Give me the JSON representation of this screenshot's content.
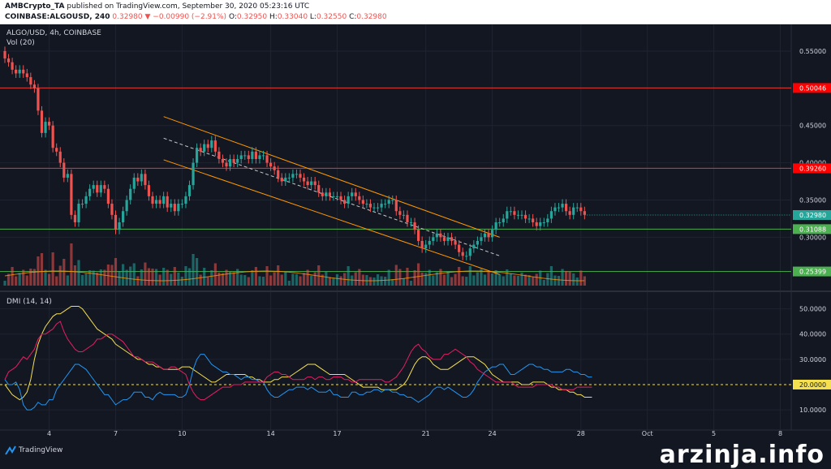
{
  "header": {
    "line1_author": "AMBCrypto_TA",
    "line1_rest": " published on TradingView.com, September 30, 2020 05:23:16 UTC",
    "symbol": "COINBASE:ALGOUSD, 240",
    "last": "0.32980",
    "change": "−0.00990 (−2.91%)",
    "o_lbl": "O:",
    "o": "0.32950",
    "h_lbl": "H:",
    "h": "0.33040",
    "l_lbl": "L:",
    "l": "0.32550",
    "c_lbl": "C:",
    "c": "0.32980"
  },
  "pane": {
    "title": "ALGO/USD, 4h, COINBASE",
    "vol": "Vol (20)",
    "dmi": "DMI (14, 14)"
  },
  "footer": {
    "brand": "TradingView",
    "watermark": "arzinja.info"
  },
  "colors": {
    "up": "#26a69a",
    "down": "#ef5350",
    "bg": "#131722",
    "grid": "#1f2330",
    "axis": "#d1d4dc",
    "channel": "#ff9800",
    "red_line": "#e53935",
    "green_line": "#4caf50",
    "adx": "#f5e050",
    "diplus": "#2196f3",
    "diminus": "#e91e63"
  },
  "chart_data": {
    "type": "candlestick",
    "price_ticks": [
      "0.55000",
      "0.45000",
      "0.40000",
      "0.35000",
      "0.30000"
    ],
    "price_tick_values": [
      0.55,
      0.45,
      0.4,
      0.35,
      0.3
    ],
    "ylim": [
      0.235,
      0.575
    ],
    "x_ticks": [
      "4",
      "7",
      "10",
      "14",
      "17",
      "21",
      "24",
      "28",
      "Oct",
      "5",
      "8"
    ],
    "x_tick_bars": [
      12,
      30,
      48,
      72,
      90,
      114,
      132,
      156,
      174,
      192,
      210
    ],
    "levels": [
      {
        "value": 0.50046,
        "label": "0.50046",
        "color": "#e53935",
        "label_bg": "#ff0000"
      },
      {
        "value": 0.3926,
        "label": "0.39260",
        "color": "#e53935",
        "label_bg": "#ff0000"
      },
      {
        "value": 0.31088,
        "label": "0.31088",
        "color": "#4caf50",
        "label_bg": "#4caf50"
      },
      {
        "value": 0.25399,
        "label": "0.25399",
        "color": "#4caf50",
        "label_bg": "#4caf50"
      }
    ],
    "last_price": {
      "value": 0.3298,
      "label": "0.32980",
      "color": "#26a69a"
    },
    "closes": [
      0.54,
      0.535,
      0.525,
      0.52,
      0.525,
      0.52,
      0.515,
      0.505,
      0.5,
      0.47,
      0.44,
      0.455,
      0.45,
      0.42,
      0.415,
      0.4,
      0.38,
      0.385,
      0.33,
      0.32,
      0.345,
      0.345,
      0.355,
      0.365,
      0.37,
      0.36,
      0.37,
      0.365,
      0.345,
      0.33,
      0.31,
      0.32,
      0.335,
      0.35,
      0.365,
      0.38,
      0.375,
      0.385,
      0.37,
      0.355,
      0.345,
      0.35,
      0.345,
      0.355,
      0.34,
      0.345,
      0.335,
      0.345,
      0.345,
      0.355,
      0.37,
      0.4,
      0.42,
      0.415,
      0.425,
      0.42,
      0.43,
      0.415,
      0.405,
      0.4,
      0.395,
      0.405,
      0.4,
      0.405,
      0.41,
      0.41,
      0.405,
      0.415,
      0.405,
      0.41,
      0.41,
      0.4,
      0.395,
      0.39,
      0.38,
      0.375,
      0.38,
      0.38,
      0.385,
      0.385,
      0.38,
      0.375,
      0.37,
      0.375,
      0.37,
      0.36,
      0.355,
      0.36,
      0.355,
      0.355,
      0.355,
      0.35,
      0.345,
      0.355,
      0.36,
      0.355,
      0.35,
      0.345,
      0.345,
      0.34,
      0.34,
      0.34,
      0.345,
      0.345,
      0.35,
      0.35,
      0.335,
      0.33,
      0.33,
      0.32,
      0.32,
      0.31,
      0.295,
      0.285,
      0.29,
      0.295,
      0.3,
      0.305,
      0.3,
      0.295,
      0.3,
      0.295,
      0.29,
      0.28,
      0.275,
      0.275,
      0.285,
      0.29,
      0.295,
      0.3,
      0.305,
      0.3,
      0.31,
      0.32,
      0.32,
      0.325,
      0.335,
      0.335,
      0.33,
      0.33,
      0.33,
      0.325,
      0.325,
      0.32,
      0.315,
      0.32,
      0.32,
      0.325,
      0.335,
      0.34,
      0.34,
      0.345,
      0.335,
      0.33,
      0.34,
      0.34,
      0.335,
      0.33
    ],
    "channel_upper": [
      {
        "bar": 43,
        "value": 0.462
      },
      {
        "bar": 134,
        "value": 0.3
      }
    ],
    "channel_lower": [
      {
        "bar": 43,
        "value": 0.404
      },
      {
        "bar": 134,
        "value": 0.25
      }
    ],
    "dashed_mid": [
      {
        "bar": 43,
        "value": 0.433
      },
      {
        "bar": 134,
        "value": 0.275
      }
    ],
    "dmi_ticks": [
      "50.0000",
      "40.0000",
      "30.0000",
      "10.0000"
    ],
    "dmi_tick_values": [
      50,
      40,
      30,
      10
    ],
    "dmi_level": {
      "value": 20,
      "label": "20.0000"
    },
    "dmi_ylim": [
      2,
      55
    ],
    "adx": [
      20,
      18,
      16,
      15,
      14,
      15,
      17,
      22,
      30,
      36,
      40,
      43,
      45,
      47,
      48,
      48,
      49,
      50,
      51,
      51,
      51,
      50,
      48,
      46,
      44,
      42,
      41,
      40,
      39,
      38,
      36,
      35,
      34,
      33,
      32,
      31,
      30,
      30,
      29,
      28,
      28,
      27,
      27,
      26,
      26,
      26,
      26,
      26,
      27,
      27,
      27,
      26,
      25,
      24,
      23,
      22,
      21,
      21,
      22,
      23,
      24,
      24,
      24,
      24,
      24,
      24,
      23,
      23,
      22,
      22,
      21,
      21,
      21,
      22,
      22,
      23,
      23,
      23,
      24,
      25,
      26,
      27,
      28,
      28,
      28,
      27,
      26,
      25,
      24,
      24,
      24,
      24,
      24,
      23,
      22,
      21,
      20,
      19,
      19,
      19,
      19,
      19,
      18,
      18,
      18,
      18,
      18,
      19,
      20,
      22,
      25,
      28,
      30,
      31,
      31,
      30,
      28,
      27,
      26,
      26,
      26,
      27,
      28,
      29,
      30,
      31,
      31,
      31,
      30,
      29,
      28,
      26,
      24,
      23,
      22,
      21,
      21,
      21,
      21,
      21,
      20,
      20,
      20,
      21,
      21,
      21,
      21,
      20,
      19,
      19,
      18,
      18,
      18,
      17,
      17,
      16,
      16,
      15,
      15,
      15
    ],
    "di_plus": [
      22,
      20,
      20,
      21,
      18,
      12,
      10,
      10,
      11,
      13,
      12,
      12,
      14,
      14,
      18,
      20,
      22,
      24,
      26,
      28,
      28,
      27,
      26,
      24,
      22,
      20,
      18,
      16,
      16,
      14,
      12,
      13,
      14,
      14,
      15,
      17,
      17,
      17,
      15,
      15,
      14,
      16,
      17,
      16,
      16,
      16,
      16,
      15,
      15,
      16,
      20,
      26,
      30,
      32,
      32,
      30,
      28,
      27,
      26,
      25,
      25,
      24,
      24,
      23,
      22,
      23,
      23,
      22,
      22,
      21,
      21,
      18,
      16,
      15,
      15,
      16,
      17,
      18,
      18,
      19,
      19,
      19,
      18,
      19,
      18,
      17,
      17,
      17,
      18,
      16,
      16,
      15,
      15,
      15,
      17,
      17,
      16,
      16,
      17,
      17,
      18,
      18,
      17,
      18,
      18,
      17,
      17,
      16,
      16,
      15,
      15,
      14,
      13,
      14,
      15,
      16,
      18,
      19,
      19,
      18,
      19,
      18,
      17,
      16,
      15,
      15,
      16,
      18,
      21,
      23,
      25,
      26,
      27,
      27,
      28,
      28,
      26,
      24,
      24,
      25,
      26,
      27,
      28,
      28,
      27,
      27,
      26,
      26,
      25,
      25,
      25,
      25,
      26,
      26,
      25,
      25,
      24,
      24,
      23,
      23
    ],
    "di_minus": [
      22,
      25,
      26,
      27,
      29,
      31,
      30,
      32,
      34,
      38,
      40,
      40,
      41,
      42,
      44,
      45,
      41,
      38,
      36,
      34,
      33,
      33,
      34,
      35,
      36,
      38,
      38,
      39,
      40,
      40,
      39,
      38,
      37,
      35,
      33,
      31,
      31,
      30,
      29,
      29,
      29,
      28,
      27,
      26,
      26,
      27,
      27,
      26,
      25,
      24,
      20,
      17,
      15,
      14,
      14,
      15,
      16,
      17,
      18,
      19,
      19,
      19,
      20,
      20,
      20,
      21,
      21,
      21,
      21,
      21,
      21,
      23,
      24,
      25,
      25,
      24,
      24,
      23,
      22,
      22,
      22,
      22,
      23,
      23,
      22,
      23,
      23,
      22,
      22,
      23,
      23,
      23,
      22,
      22,
      21,
      21,
      22,
      22,
      22,
      22,
      22,
      22,
      22,
      21,
      21,
      22,
      23,
      25,
      27,
      30,
      33,
      35,
      36,
      34,
      33,
      31,
      30,
      30,
      30,
      32,
      32,
      33,
      34,
      33,
      32,
      31,
      29,
      28,
      26,
      25,
      24,
      23,
      22,
      21,
      21,
      21,
      21,
      21,
      20,
      19,
      19,
      19,
      19,
      19,
      20,
      20,
      20,
      20,
      20,
      19,
      19,
      18,
      18,
      18,
      18,
      19,
      19,
      19,
      19,
      19
    ]
  }
}
